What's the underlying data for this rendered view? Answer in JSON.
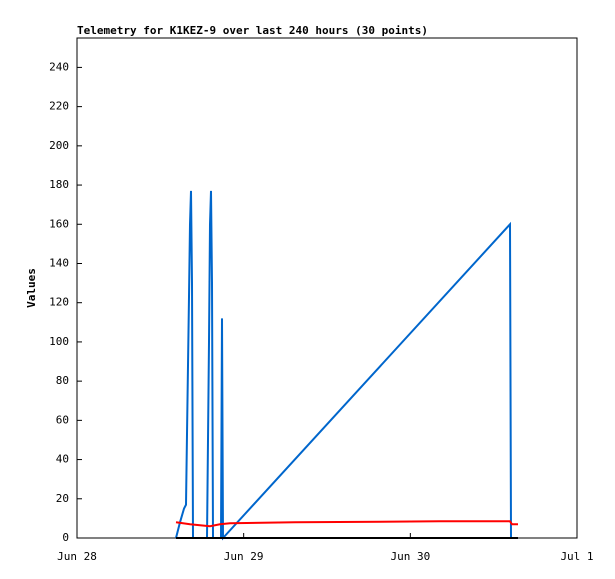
{
  "chart_data": {
    "type": "line",
    "title": "Telemetry for K1KEZ-9 over last 240 hours (30 points)",
    "y_label": "Values",
    "xlim": [
      0,
      3
    ],
    "xticks": [
      {
        "value": 0,
        "label": "Jun 28"
      },
      {
        "value": 1,
        "label": "Jun 29"
      },
      {
        "value": 2,
        "label": "Jun 30"
      },
      {
        "value": 3,
        "label": "Jul 1"
      }
    ],
    "ylim": [
      0,
      255
    ],
    "yticks": [
      0,
      20,
      40,
      60,
      80,
      100,
      120,
      140,
      160,
      180,
      200,
      220,
      240
    ],
    "series": [
      {
        "color": "#0066cc",
        "x": [
          0.594,
          0.618,
          0.642,
          0.654,
          0.66,
          0.666,
          0.672,
          0.678,
          0.684,
          0.69,
          0.696,
          0.78,
          0.786,
          0.792,
          0.798,
          0.804,
          0.81,
          0.816,
          0.864,
          0.87,
          0.876,
          2.598,
          2.604
        ],
        "values": [
          0,
          8,
          15,
          17,
          53,
          88,
          123,
          160,
          177,
          130,
          0,
          0,
          50,
          100,
          160,
          177,
          130,
          0,
          0,
          112,
          0,
          160,
          0
        ]
      },
      {
        "color": "#ff0000",
        "x": [
          0.594,
          0.678,
          0.738,
          0.798,
          0.858,
          0.918,
          1.308,
          2.178,
          2.598,
          2.61,
          2.646
        ],
        "values": [
          8,
          7,
          6.5,
          6,
          7,
          7.5,
          8,
          8.5,
          8.5,
          7,
          7
        ]
      },
      {
        "color": "#000000",
        "x": [
          0.594,
          2.646
        ],
        "values": [
          0,
          0
        ]
      }
    ]
  }
}
